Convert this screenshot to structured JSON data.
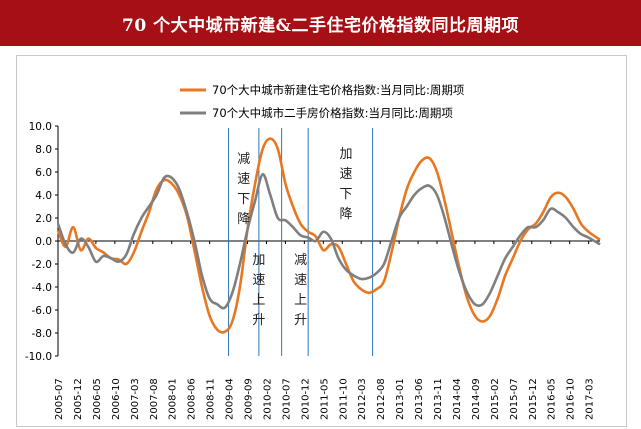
{
  "page_title": "70 个大中城市新建&二手住宅价格指数同比周期项",
  "chart_data": {
    "type": "line",
    "title": "",
    "xlabel": "",
    "ylabel": "",
    "ylim": [
      -10,
      10
    ],
    "yticks": [
      "10.0",
      "8.0",
      "6.0",
      "4.0",
      "2.0",
      "0.0",
      "-2.0",
      "-4.0",
      "-6.0",
      "-8.0",
      "-10.0"
    ],
    "grid": false,
    "legend_position": "top-center",
    "x_tick_labels": [
      "2005-07",
      "2005-12",
      "2006-05",
      "2006-10",
      "2007-03",
      "2007-08",
      "2008-01",
      "2008-06",
      "2008-11",
      "2009-04",
      "2009-09",
      "2010-02",
      "2010-07",
      "2010-12",
      "2011-05",
      "2011-10",
      "2012-03",
      "2012-08",
      "2013-01",
      "2013-06",
      "2013-11",
      "2014-04",
      "2014-09",
      "2015-02",
      "2015-07",
      "2015-12",
      "2016-05",
      "2016-10",
      "2017-03"
    ],
    "x_start": "2005-07",
    "x_end": "2017-06",
    "colors": {
      "new": "#e87722",
      "second": "#7f7f7f",
      "divider": "#2e75b6"
    },
    "series": [
      {
        "name": "70个大中城市新建住宅价格指数:当月同比:周期项",
        "color": "#e87722",
        "points": [
          [
            "2005-07",
            0.9
          ],
          [
            "2005-09",
            -0.5
          ],
          [
            "2005-11",
            1.2
          ],
          [
            "2006-01",
            -0.8
          ],
          [
            "2006-03",
            0.2
          ],
          [
            "2006-05",
            -0.6
          ],
          [
            "2006-07",
            -1.0
          ],
          [
            "2006-09",
            -1.5
          ],
          [
            "2006-11",
            -1.6
          ],
          [
            "2007-01",
            -2.0
          ],
          [
            "2007-03",
            -1.0
          ],
          [
            "2007-05",
            0.8
          ],
          [
            "2007-07",
            2.5
          ],
          [
            "2007-09",
            4.5
          ],
          [
            "2007-11",
            5.3
          ],
          [
            "2008-01",
            5.0
          ],
          [
            "2008-03",
            4.0
          ],
          [
            "2008-05",
            2.2
          ],
          [
            "2008-07",
            -0.8
          ],
          [
            "2008-09",
            -4.0
          ],
          [
            "2008-11",
            -6.5
          ],
          [
            "2009-01",
            -7.7
          ],
          [
            "2009-03",
            -7.9
          ],
          [
            "2009-05",
            -7.0
          ],
          [
            "2009-07",
            -4.0
          ],
          [
            "2009-09",
            1.0
          ],
          [
            "2009-11",
            5.0
          ],
          [
            "2010-01",
            8.0
          ],
          [
            "2010-03",
            8.9
          ],
          [
            "2010-05",
            8.0
          ],
          [
            "2010-07",
            5.0
          ],
          [
            "2010-09",
            3.0
          ],
          [
            "2010-11",
            1.5
          ],
          [
            "2011-01",
            0.8
          ],
          [
            "2011-03",
            0.4
          ],
          [
            "2011-05",
            -0.8
          ],
          [
            "2011-07",
            -0.3
          ],
          [
            "2011-09",
            -0.5
          ],
          [
            "2011-11",
            -2.0
          ],
          [
            "2012-01",
            -3.5
          ],
          [
            "2012-03",
            -4.2
          ],
          [
            "2012-05",
            -4.5
          ],
          [
            "2012-07",
            -4.2
          ],
          [
            "2012-09",
            -3.5
          ],
          [
            "2012-11",
            -1.0
          ],
          [
            "2013-01",
            2.0
          ],
          [
            "2013-03",
            4.5
          ],
          [
            "2013-05",
            6.0
          ],
          [
            "2013-07",
            7.0
          ],
          [
            "2013-09",
            7.2
          ],
          [
            "2013-11",
            6.0
          ],
          [
            "2014-01",
            3.5
          ],
          [
            "2014-03",
            0.5
          ],
          [
            "2014-05",
            -2.5
          ],
          [
            "2014-07",
            -5.0
          ],
          [
            "2014-09",
            -6.5
          ],
          [
            "2014-11",
            -7.0
          ],
          [
            "2015-01",
            -6.5
          ],
          [
            "2015-03",
            -5.0
          ],
          [
            "2015-05",
            -3.0
          ],
          [
            "2015-07",
            -1.5
          ],
          [
            "2015-09",
            0.0
          ],
          [
            "2015-11",
            1.0
          ],
          [
            "2016-01",
            1.5
          ],
          [
            "2016-03",
            2.5
          ],
          [
            "2016-05",
            3.8
          ],
          [
            "2016-07",
            4.2
          ],
          [
            "2016-09",
            3.8
          ],
          [
            "2016-11",
            2.8
          ],
          [
            "2017-01",
            1.5
          ],
          [
            "2017-03",
            0.8
          ],
          [
            "2017-06",
            0.1
          ]
        ]
      },
      {
        "name": "70个大中城市二手房价格指数:当月同比:周期项",
        "color": "#7f7f7f",
        "points": [
          [
            "2005-07",
            1.5
          ],
          [
            "2005-09",
            -0.3
          ],
          [
            "2005-11",
            -1.0
          ],
          [
            "2006-01",
            0.2
          ],
          [
            "2006-03",
            -0.5
          ],
          [
            "2006-05",
            -1.8
          ],
          [
            "2006-07",
            -1.3
          ],
          [
            "2006-09",
            -1.5
          ],
          [
            "2006-11",
            -1.8
          ],
          [
            "2007-01",
            -1.2
          ],
          [
            "2007-03",
            0.6
          ],
          [
            "2007-05",
            2.0
          ],
          [
            "2007-07",
            3.0
          ],
          [
            "2007-09",
            4.0
          ],
          [
            "2007-11",
            5.5
          ],
          [
            "2008-01",
            5.5
          ],
          [
            "2008-03",
            4.5
          ],
          [
            "2008-05",
            2.5
          ],
          [
            "2008-07",
            0.0
          ],
          [
            "2008-09",
            -3.0
          ],
          [
            "2008-11",
            -5.0
          ],
          [
            "2009-01",
            -5.5
          ],
          [
            "2009-03",
            -5.8
          ],
          [
            "2009-05",
            -4.5
          ],
          [
            "2009-07",
            -2.0
          ],
          [
            "2009-09",
            1.0
          ],
          [
            "2009-11",
            3.5
          ],
          [
            "2010-01",
            5.8
          ],
          [
            "2010-03",
            4.0
          ],
          [
            "2010-05",
            2.0
          ],
          [
            "2010-07",
            1.8
          ],
          [
            "2010-09",
            1.2
          ],
          [
            "2010-11",
            0.5
          ],
          [
            "2011-01",
            0.3
          ],
          [
            "2011-03",
            0.0
          ],
          [
            "2011-05",
            0.8
          ],
          [
            "2011-07",
            0.2
          ],
          [
            "2011-09",
            -1.5
          ],
          [
            "2011-11",
            -2.5
          ],
          [
            "2012-01",
            -3.0
          ],
          [
            "2012-03",
            -3.3
          ],
          [
            "2012-05",
            -3.2
          ],
          [
            "2012-07",
            -2.8
          ],
          [
            "2012-09",
            -2.0
          ],
          [
            "2012-11",
            0.0
          ],
          [
            "2013-01",
            2.0
          ],
          [
            "2013-03",
            3.0
          ],
          [
            "2013-05",
            4.0
          ],
          [
            "2013-07",
            4.6
          ],
          [
            "2013-09",
            4.8
          ],
          [
            "2013-11",
            4.0
          ],
          [
            "2014-01",
            2.0
          ],
          [
            "2014-03",
            -0.5
          ],
          [
            "2014-05",
            -2.8
          ],
          [
            "2014-07",
            -4.5
          ],
          [
            "2014-09",
            -5.5
          ],
          [
            "2014-11",
            -5.5
          ],
          [
            "2015-01",
            -4.5
          ],
          [
            "2015-03",
            -3.0
          ],
          [
            "2015-05",
            -1.5
          ],
          [
            "2015-07",
            -0.5
          ],
          [
            "2015-09",
            0.5
          ],
          [
            "2015-11",
            1.2
          ],
          [
            "2016-01",
            1.2
          ],
          [
            "2016-03",
            1.8
          ],
          [
            "2016-05",
            2.8
          ],
          [
            "2016-07",
            2.5
          ],
          [
            "2016-09",
            2.0
          ],
          [
            "2016-11",
            1.2
          ],
          [
            "2017-01",
            0.6
          ],
          [
            "2017-03",
            0.3
          ],
          [
            "2017-06",
            -0.3
          ]
        ]
      }
    ],
    "vertical_lines": [
      "2009-04",
      "2009-12",
      "2010-06",
      "2011-01",
      "2012-06"
    ],
    "annotations": [
      {
        "id": "ann1",
        "chars": [
          "减",
          "速",
          "下",
          "降"
        ],
        "x": "2009-08",
        "y": 6.8
      },
      {
        "id": "ann2",
        "chars": [
          "加",
          "速",
          "上",
          "升"
        ],
        "x": "2009-12",
        "y": -2.0
      },
      {
        "id": "ann3",
        "chars": [
          "减",
          "速",
          "上",
          "升"
        ],
        "x": "2010-11",
        "y": -2.0
      },
      {
        "id": "ann4",
        "chars": [
          "加",
          "速",
          "下",
          "降"
        ],
        "x": "2011-11",
        "y": 7.2
      }
    ]
  }
}
